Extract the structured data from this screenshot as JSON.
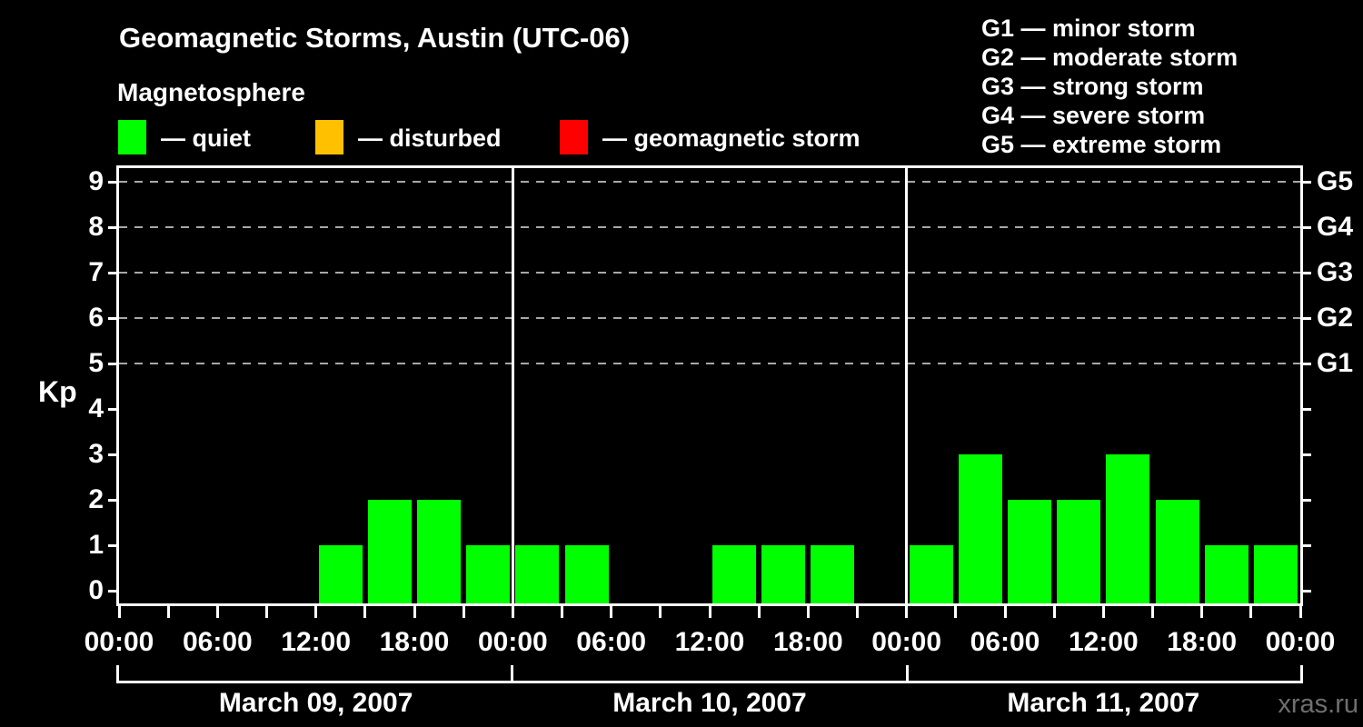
{
  "header": {
    "title": "Geomagnetic Storms, Austin (UTC-06)",
    "subtitle": "Magnetosphere"
  },
  "legend": {
    "items": [
      {
        "name": "quiet",
        "swatch_color": "#00ff00",
        "label": "— quiet"
      },
      {
        "name": "disturbed",
        "swatch_color": "#ffc000",
        "label": "— disturbed"
      },
      {
        "name": "geomagnetic-storm",
        "swatch_color": "#ff0000",
        "label": "— geomagnetic storm"
      }
    ]
  },
  "g_scale_legend": {
    "lines": [
      "G1 — minor storm",
      "G2 — moderate storm",
      "G3 — strong storm",
      "G4 — severe storm",
      "G5 — extreme storm"
    ]
  },
  "watermark": "xras.ru",
  "chart_data": {
    "type": "bar",
    "title": "Geomagnetic Storms, Austin (UTC-06)",
    "subtitle": "Magnetosphere",
    "ylabel": "Kp",
    "ylim": [
      0,
      9
    ],
    "y_ticks": [
      0,
      1,
      2,
      3,
      4,
      5,
      6,
      7,
      8,
      9
    ],
    "grid_levels": [
      5,
      6,
      7,
      8,
      9
    ],
    "grid_style": "dashed",
    "right_axis_labels": [
      {
        "kp": 5,
        "label": "G1"
      },
      {
        "kp": 6,
        "label": "G2"
      },
      {
        "kp": 7,
        "label": "G3"
      },
      {
        "kp": 8,
        "label": "G4"
      },
      {
        "kp": 9,
        "label": "G5"
      }
    ],
    "interval_hours": 3,
    "x_tick_hours": [
      0,
      3,
      6,
      9,
      12,
      15,
      18,
      21,
      24
    ],
    "x_time_labels_per_day": [
      "00:00",
      "06:00",
      "12:00",
      "18:00"
    ],
    "closing_time_label": "00:00",
    "bar_color": "#00ff00",
    "days": [
      {
        "date": "March 09, 2007",
        "values": [
          0,
          0,
          0,
          0,
          1,
          2,
          2,
          1
        ]
      },
      {
        "date": "March 10, 2007",
        "values": [
          1,
          1,
          0,
          0,
          1,
          1,
          1,
          0
        ]
      },
      {
        "date": "March 11, 2007",
        "values": [
          1,
          3,
          2,
          2,
          3,
          2,
          1,
          1
        ]
      }
    ]
  },
  "colors": {
    "background": "#000000",
    "text": "#ffffff",
    "frame": "#ffffff",
    "grid": "#a8a8a8",
    "quiet": "#00ff00",
    "disturbed": "#ffc000",
    "storm": "#ff0000",
    "watermark": "#6f6f6f"
  }
}
